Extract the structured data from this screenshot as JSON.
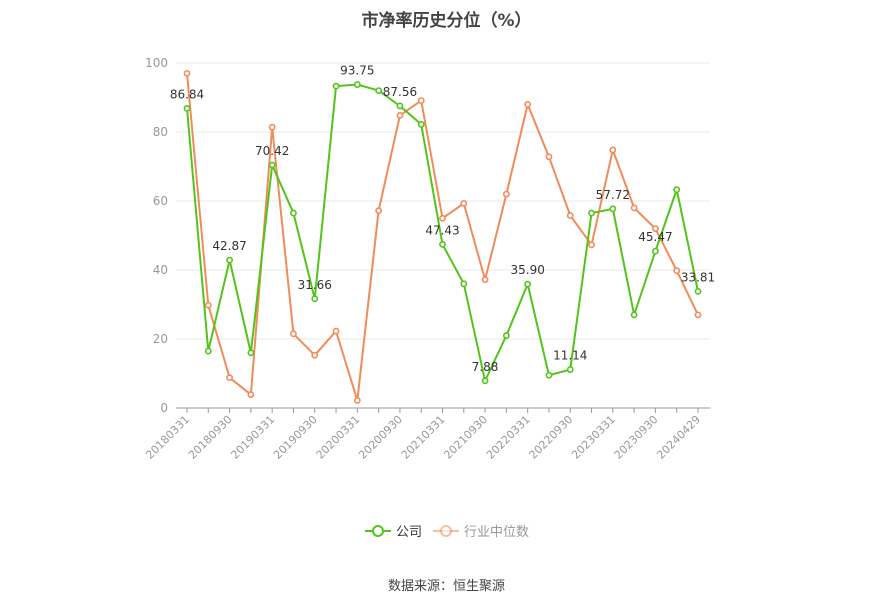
{
  "chart_data": {
    "type": "line",
    "title": "市净率历史分位（%）",
    "source": "数据来源：恒生聚源",
    "ylim": [
      0,
      100
    ],
    "yticks": [
      0,
      20,
      40,
      60,
      80,
      100
    ],
    "grid": true,
    "legend_position": "bottom-center",
    "x": [
      "20180331",
      "20180630",
      "20180930",
      "20181231",
      "20190331",
      "20190630",
      "20190930",
      "20191231",
      "20200331",
      "20200630",
      "20200930",
      "20201231",
      "20210331",
      "20210630",
      "20210930",
      "20211231",
      "20220331",
      "20220630",
      "20220930",
      "20221231",
      "20230331",
      "20230630",
      "20230930",
      "20231231",
      "20240429"
    ],
    "xtick_labels": [
      "20180331",
      "20180930",
      "20190331",
      "20190930",
      "20200331",
      "20200930",
      "20210331",
      "20210930",
      "20220331",
      "20220930",
      "20230331",
      "20230930",
      "20240429"
    ],
    "series": [
      {
        "name": "公司",
        "color": "#52c41a",
        "values": [
          86.84,
          16.5,
          42.87,
          16.0,
          70.42,
          56.5,
          31.66,
          93.3,
          93.75,
          92.0,
          87.56,
          82.2,
          47.43,
          36.0,
          7.88,
          21.0,
          35.9,
          9.5,
          11.14,
          56.5,
          57.72,
          27.0,
          45.47,
          63.3,
          33.81
        ],
        "labels": {
          "0": "86.84",
          "2": "42.87",
          "4": "70.42",
          "6": "31.66",
          "8": "93.75",
          "10": "87.56",
          "12": "47.43",
          "14": "7.88",
          "16": "35.90",
          "18": "11.14",
          "20": "57.72",
          "22": "45.47",
          "24": "33.81"
        }
      },
      {
        "name": "行业中位数",
        "color": "#f08c5a",
        "values": [
          97.0,
          29.8,
          8.8,
          3.9,
          81.4,
          21.5,
          15.3,
          22.3,
          2.2,
          57.2,
          84.8,
          89.1,
          55.0,
          59.3,
          37.2,
          62.0,
          88.0,
          72.8,
          55.8,
          47.3,
          74.8,
          58.0,
          52.0,
          39.8,
          27.0
        ]
      }
    ]
  }
}
